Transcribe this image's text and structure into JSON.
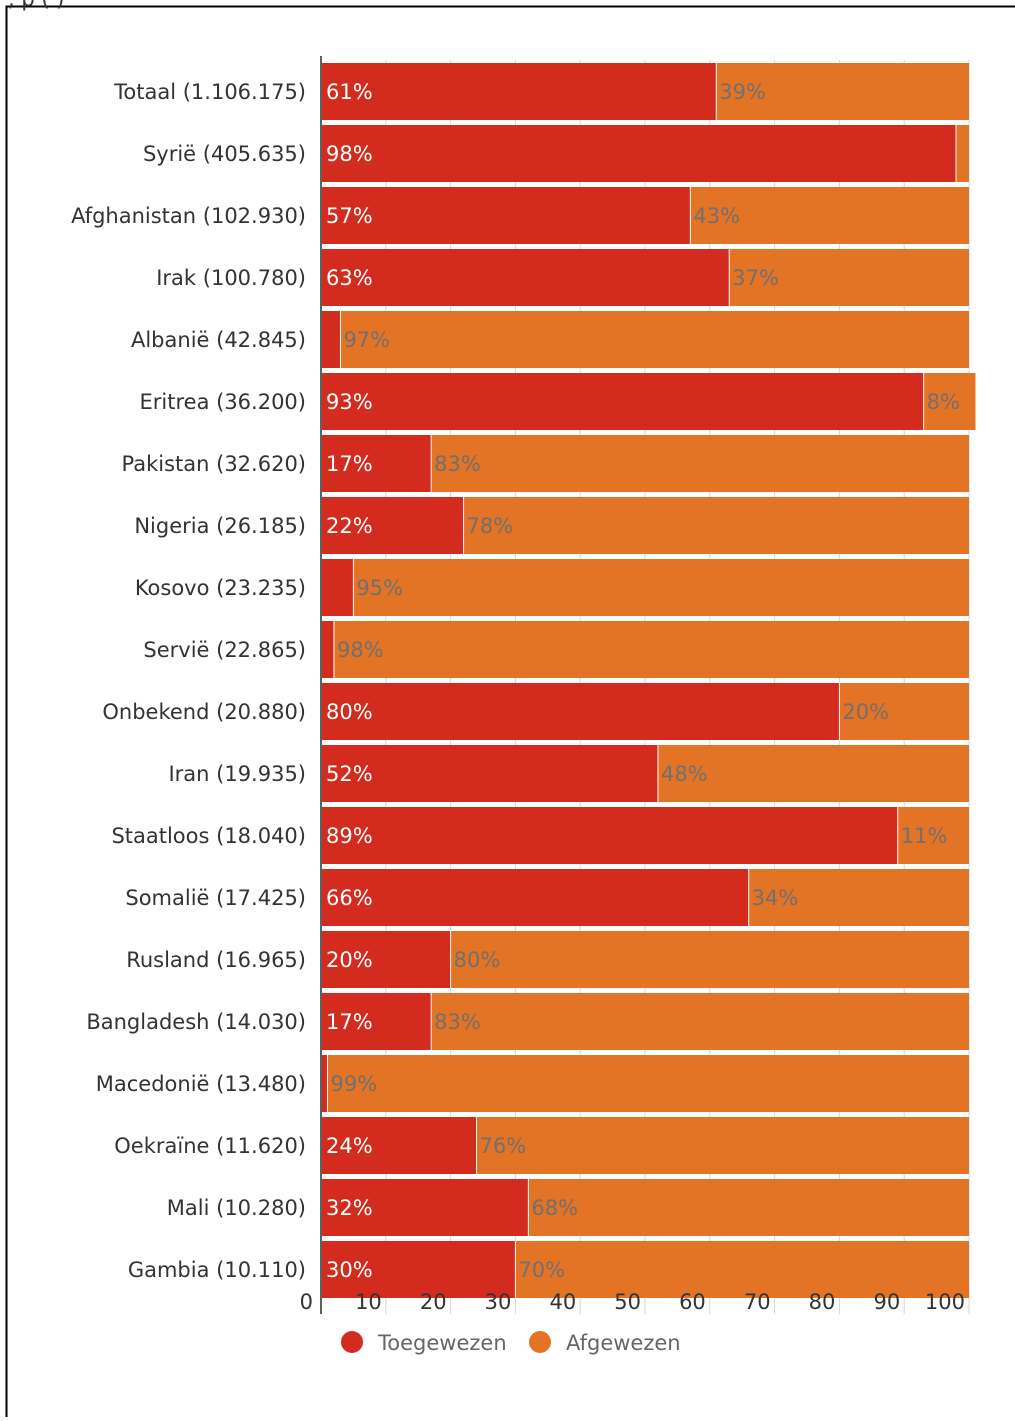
{
  "caption": ", p    (    )",
  "chart_data": {
    "type": "bar",
    "orientation": "horizontal",
    "stacked": true,
    "title": "",
    "xlabel": "",
    "ylabel": "",
    "xlim": [
      0,
      100
    ],
    "x_ticks": [
      "0",
      "10",
      "20",
      "30",
      "40",
      "50",
      "60",
      "70",
      "80",
      "90",
      "100"
    ],
    "categories": [
      "Totaal (1.106.175)",
      "Syrië (405.635)",
      "Afghanistan (102.930)",
      "Irak (100.780)",
      "Albanië (42.845)",
      "Eritrea (36.200)",
      "Pakistan (32.620)",
      "Nigeria (26.185)",
      "Kosovo (23.235)",
      "Servië (22.865)",
      "Onbekend (20.880)",
      "Iran (19.935)",
      "Staatloos (18.040)",
      "Somalië (17.425)",
      "Rusland (16.965)",
      "Bangladesh (14.030)",
      "Macedonië (13.480)",
      "Oekraïne (11.620)",
      "Mali (10.280)",
      "Gambia (10.110)"
    ],
    "series": [
      {
        "name": "Toegewezen",
        "color": "#d42b1f",
        "values": [
          61,
          98,
          57,
          63,
          3,
          93,
          17,
          22,
          5,
          2,
          80,
          52,
          89,
          66,
          20,
          17,
          1,
          24,
          32,
          30
        ],
        "labels": [
          "61%",
          "98%",
          "57%",
          "63%",
          "",
          "93%",
          "17%",
          "22%",
          "",
          "",
          "80%",
          "52%",
          "89%",
          "66%",
          "20%",
          "17%",
          "",
          "24%",
          "32%",
          "30%"
        ]
      },
      {
        "name": "Afgewezen",
        "color": "#e37325",
        "values": [
          39,
          2,
          43,
          37,
          97,
          8,
          83,
          78,
          95,
          98,
          20,
          48,
          11,
          34,
          80,
          83,
          99,
          76,
          68,
          70
        ],
        "labels": [
          "39%",
          "",
          "43%",
          "37%",
          "97%",
          "8%",
          "83%",
          "78%",
          "95%",
          "98%",
          "20%",
          "48%",
          "11%",
          "34%",
          "80%",
          "83%",
          "99%",
          "76%",
          "68%",
          "70%"
        ]
      }
    ],
    "legend_position": "bottom",
    "grid": true
  }
}
